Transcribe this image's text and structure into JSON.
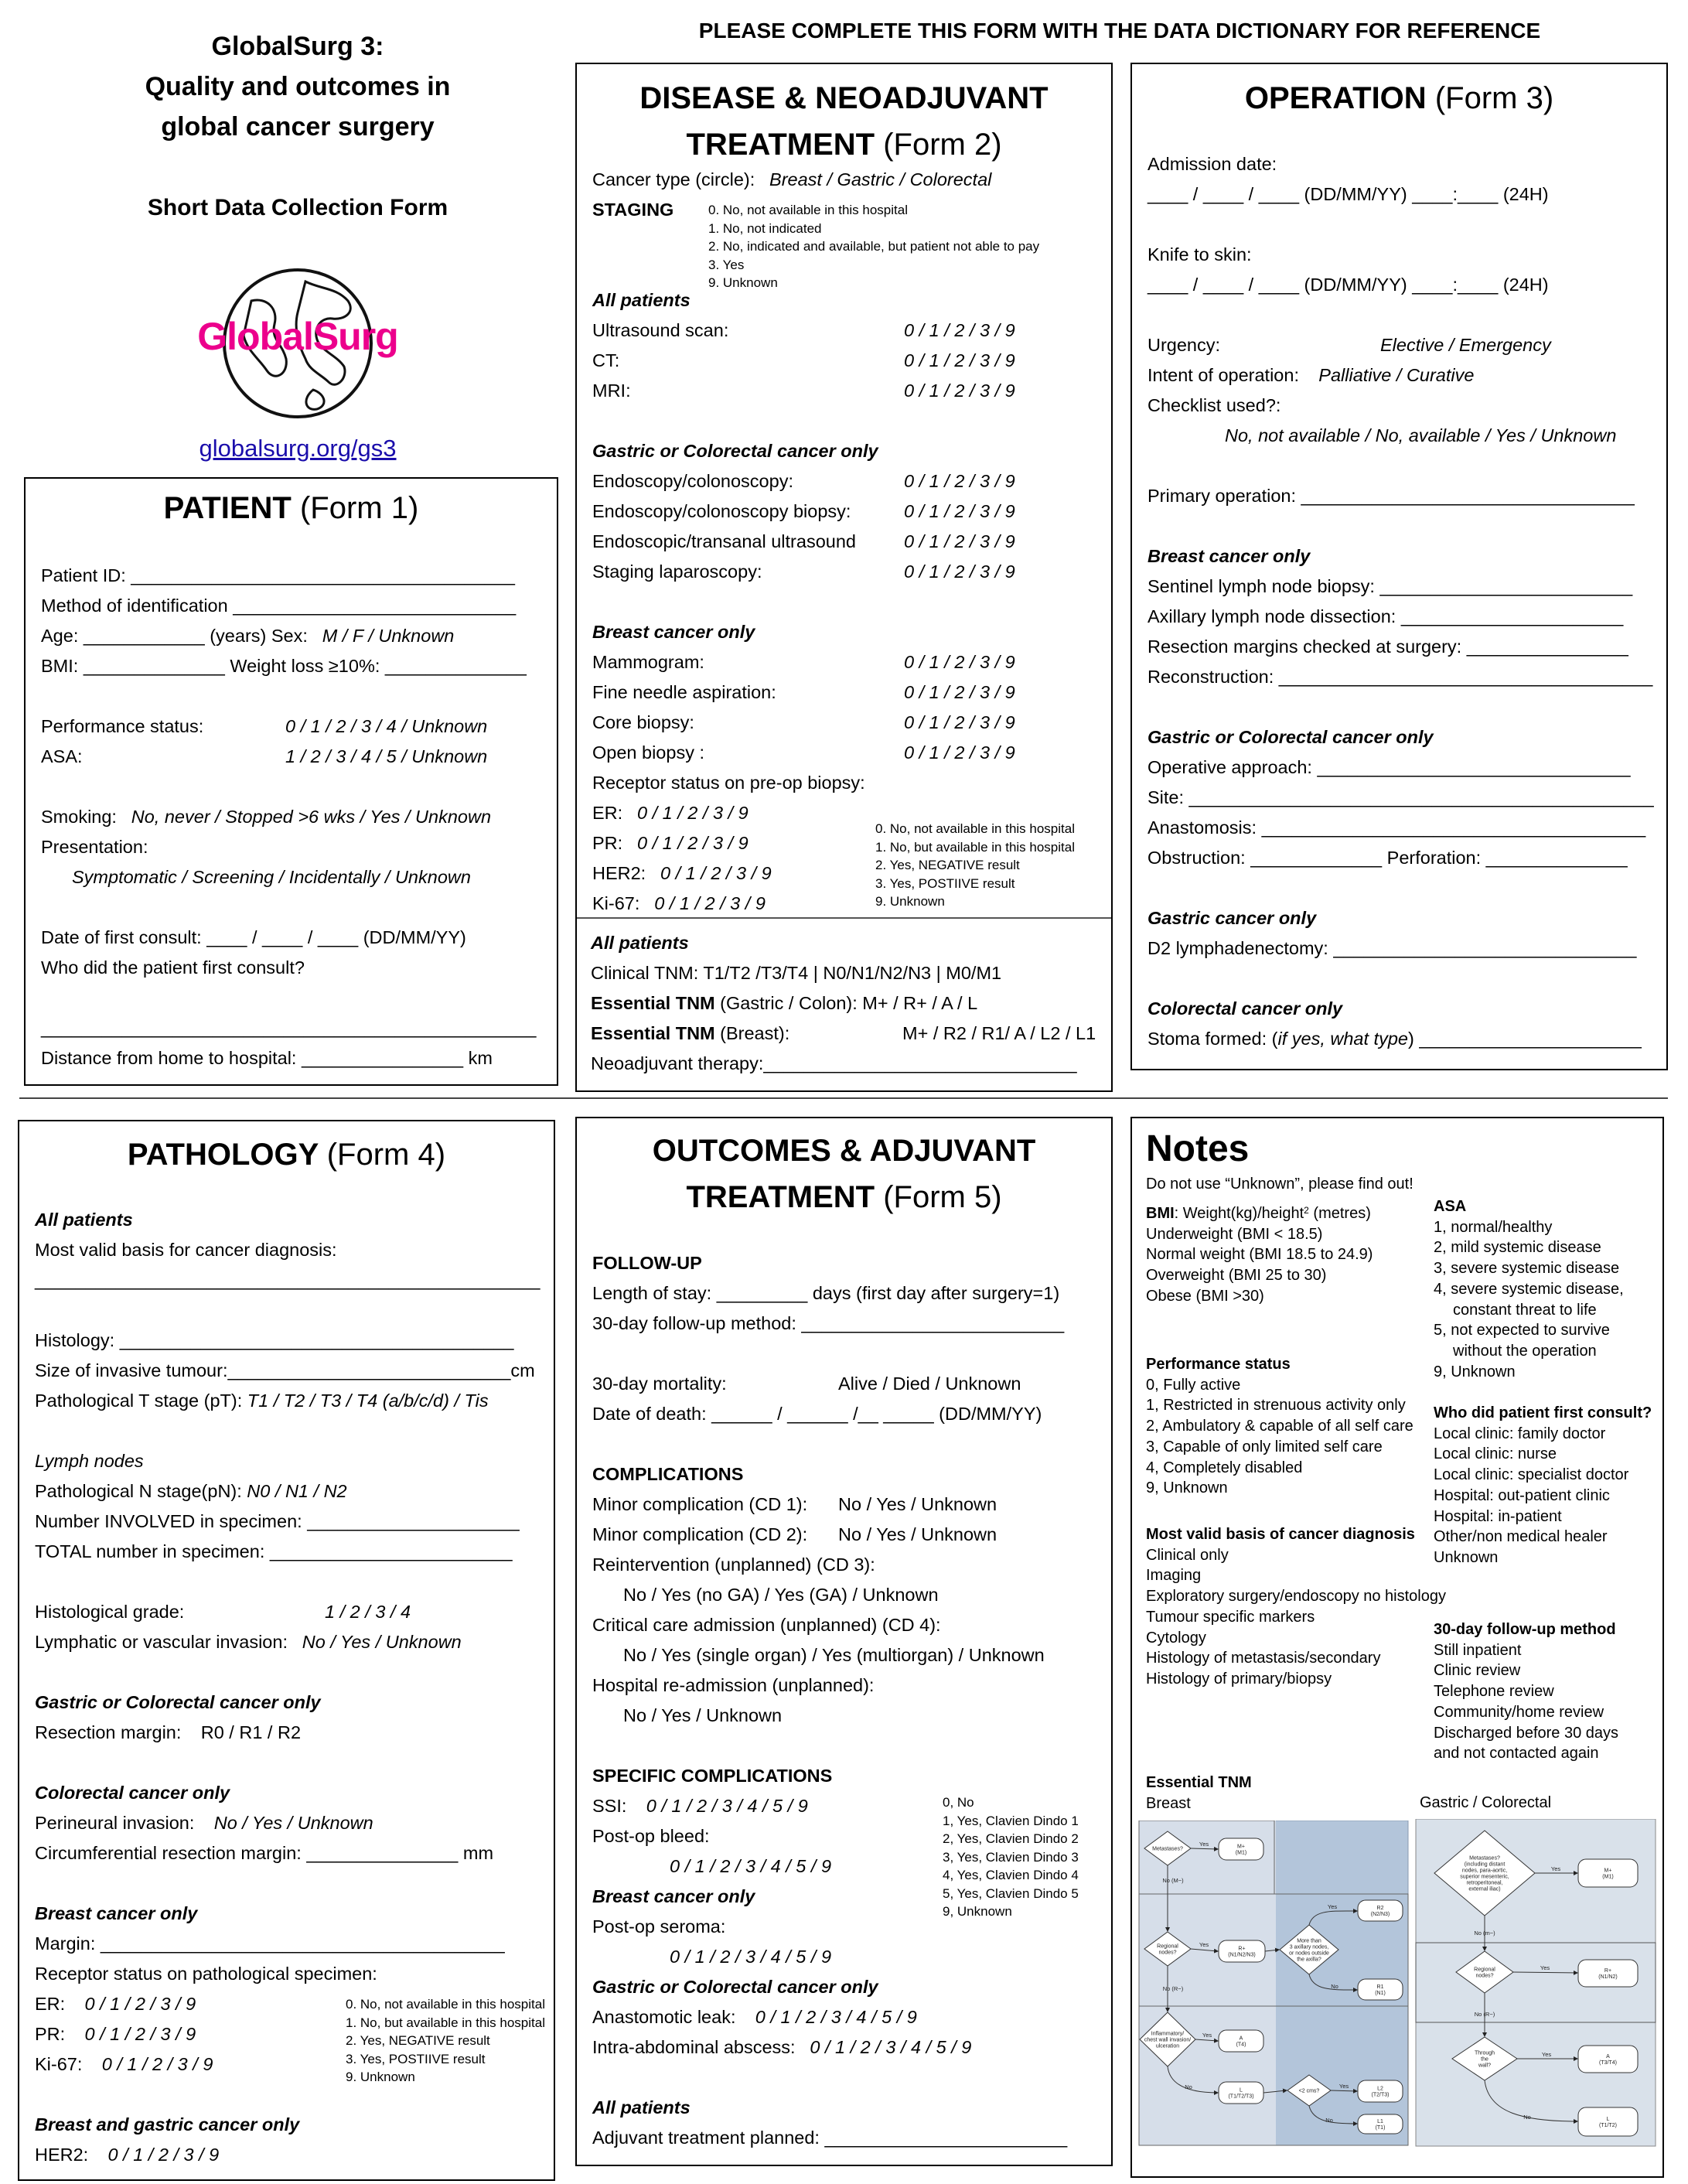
{
  "header": {
    "title_lines": [
      "GlobalSurg 3:",
      "Quality and outcomes in",
      "global cancer surgery"
    ],
    "subtitle": "Short Data Collection Form",
    "logo_text": "GlobalSurg",
    "link": "globalsurg.org/gs3",
    "banner": "PLEASE COMPLETE THIS FORM WITH THE DATA DICTIONARY FOR REFERENCE"
  },
  "colors": {
    "logo_pink": "#ec008c",
    "link_blue": "#1a0dab",
    "flow_light": "#d6dee9",
    "flow_dark": "#b3c5da"
  },
  "form1": {
    "title": [
      "PATIENT"
    ],
    "suffix": "(Form 1)",
    "lines": [
      "Patient ID: ______________________________________",
      "Method of identification ____________________________",
      {
        "l": "Age: ____________ (years)   Sex:",
        "i": "M / F / Unknown"
      },
      "BMI: ______________ Weight loss ≥10%: ______________",
      "",
      {
        "l": "Performance status:",
        "o": "0 / 1 / 2 / 3 / 4 / Unknown"
      },
      {
        "l": "ASA:",
        "o": "1 / 2 / 3 / 4 / 5 / Unknown"
      },
      "",
      {
        "l": "Smoking:",
        "i": "No, never / Stopped >6 wks / Yes / Unknown"
      },
      "Presentation:",
      {
        "sub": "Symptomatic / Screening / Incidentally / Unknown"
      },
      "",
      "Date of first consult: ____ / ____ / ____ (DD/MM/YY)",
      "Who did the patient first consult?",
      "",
      "_________________________________________________",
      "Distance from home to hospital: ________________ km"
    ]
  },
  "form2": {
    "title": [
      "DISEASE & NEOADJUVANT",
      "TREATMENT"
    ],
    "suffix": "(Form 2)",
    "lines": [
      {
        "l": "Cancer type (circle):",
        "i": "Breast  /  Gastric  /  Colorectal"
      },
      {
        "h": "STAGING",
        "legend": [
          "0. No, not available in this hospital",
          "1. No, not indicated",
          "2. No, indicated and available, but patient not able to pay",
          "3. Yes",
          "9. Unknown"
        ]
      },
      "",
      "",
      {
        "s": "All patients"
      },
      {
        "l": "Ultrasound scan:",
        "o": "0  /  1  /  2  /  3  /  9"
      },
      {
        "l": "CT:",
        "o": "0  /  1  /  2  /  3  /  9"
      },
      {
        "l": "MRI:",
        "o": "0  /  1  /  2  /  3  /  9"
      },
      "",
      {
        "s": "Gastric or Colorectal cancer only"
      },
      {
        "l": "Endoscopy/colonoscopy:",
        "o": "0  /  1  /  2  /  3  /  9"
      },
      {
        "l": "Endoscopy/colonoscopy biopsy:",
        "o": "0  /  1  /  2  /  3  /  9"
      },
      {
        "l": "Endoscopic/transanal ultrasound",
        "o": "0  /  1  /  2  /  3  /  9"
      },
      {
        "l": "Staging laparoscopy:",
        "o": "0  /  1  /  2  /  3  /  9"
      },
      "",
      {
        "s": "Breast cancer only"
      },
      {
        "l": "Mammogram:",
        "o": "0  /  1  /  2  /  3  /  9"
      },
      {
        "l": "Fine needle aspiration:",
        "o": "0  /  1  /  2  /  3  /  9"
      },
      {
        "l": "Core biopsy:",
        "o": "0  /  1  /  2  /  3  /  9"
      },
      {
        "l": "Open biopsy :",
        "o": "0  /  1  /  2  /  3  /  9"
      },
      "Receptor status on pre-op biopsy:",
      {
        "l": "ER:",
        "i": "0  /  1  /  2  /  3  /  9",
        "legend": [
          "0. No, not available in this hospital",
          "1. No, but available in this hospital",
          "2. Yes, NEGATIVE result",
          "3. Yes, POSTIIVE result",
          "9. Unknown"
        ]
      },
      {
        "l": "PR:",
        "i": "0  /  1  /  2  /  3  /  9"
      },
      {
        "l": "HER2:",
        "i": "0  /  1  /  2  /  3  /  9"
      },
      {
        "l": "Ki-67:",
        "i": "0  /  1  /  2  /  3  /  9"
      }
    ],
    "lines_bottom": [
      {
        "s": "All patients"
      },
      "Clinical TNM:   T1/T2 /T3/T4  |  N0/N1/N2/N3  |  M0/M1",
      {
        "b": "Essential TNM",
        "l": " (Gastric / Colon):  M+ / R+ / A / L"
      },
      {
        "b": "Essential TNM",
        "l": " (Breast):",
        "on": "M+ / R2 / R1/ A / L2 / L1"
      },
      "Neoadjuvant therapy:_______________________________"
    ]
  },
  "form3": {
    "title": [
      "OPERATION"
    ],
    "suffix": "(Form 3)",
    "lines": [
      "Admission date:",
      "____ / ____ / ____ (DD/MM/YY) ____:____ (24H)",
      "",
      "Knife to skin:",
      "____ / ____ / ____ (DD/MM/YY) ____:____ (24H)",
      "",
      {
        "l": "Urgency:",
        "o": "Elective    /    Emergency"
      },
      {
        "l": "Intent of operation:",
        "i": "   Palliative  /   Curative"
      },
      "Checklist used?:",
      {
        "deep": "No, not available / No, available / Yes / Unknown"
      },
      "",
      "Primary operation: _________________________________",
      "",
      {
        "s": "Breast cancer only"
      },
      "Sentinel lymph node biopsy: _________________________",
      "Axillary lymph node dissection: ______________________",
      "Resection margins checked at surgery: ________________",
      "Reconstruction: _____________________________________",
      "",
      {
        "s": "Gastric or Colorectal cancer only"
      },
      "Operative approach: _______________________________",
      "Site: ______________________________________________",
      "Anastomosis: ______________________________________",
      "Obstruction: _____________  Perforation: ______________",
      "",
      {
        "s": "Gastric cancer only"
      },
      "D2 lymphadenectomy: ______________________________",
      "",
      {
        "s": "Colorectal cancer only"
      },
      {
        "l": "Stoma formed: (",
        "it": "if yes, what type",
        "l2": ") ______________________"
      }
    ]
  },
  "form4": {
    "title": [
      "PATHOLOGY"
    ],
    "suffix": "(Form 4)",
    "lines": [
      {
        "s": "All patients"
      },
      "Most valid basis for cancer diagnosis:",
      "__________________________________________________",
      "",
      "Histology: _______________________________________",
      "Size of invasive tumour:____________________________cm",
      {
        "l": "Pathological T stage (pT):",
        "it": " T1 / T2 / T3 / T4 (a/b/c/d) / Tis"
      },
      "",
      {
        "si": "Lymph nodes"
      },
      {
        "l": "Pathological N stage(pN):",
        "it": " N0 / N1 / N2"
      },
      "Number INVOLVED in specimen: _____________________",
      "TOTAL number in specimen: ________________________",
      "",
      {
        "l": "Histological grade:",
        "o": "1   /   2   /   3   /   4"
      },
      {
        "l": "Lymphatic or vascular invasion:",
        "i": "No   /   Yes   /   Unknown"
      },
      "",
      {
        "s": "Gastric or Colorectal cancer only"
      },
      {
        "l": "Resection margin:",
        "n": "          R0  /  R1  /  R2"
      },
      "",
      {
        "s": "Colorectal cancer only"
      },
      {
        "l": "Perineural invasion:",
        "i": "        No   /   Yes   /   Unknown"
      },
      "Circumferential resection margin: _______________ mm",
      "",
      {
        "s": "Breast cancer only"
      },
      "Margin: ________________________________________",
      "Receptor status on pathological specimen:",
      {
        "l": "ER:",
        "i": "    0  /  1  /  2  /  3  /  9",
        "legend": [
          "0. No, not available in this hospital",
          "1. No, but available in this hospital",
          "2. Yes, NEGATIVE result",
          "3. Yes, POSTIIVE result",
          "9. Unknown"
        ]
      },
      {
        "l": "PR:",
        "i": "    0  /  1  /  2  /  3  /  9"
      },
      {
        "l": "Ki-67:",
        "i": " 0  /  1  /  2  /  3  /  9"
      },
      "",
      {
        "s": "Breast and gastric cancer only"
      },
      {
        "l": "HER2:",
        "i": " 0  /  1  /  2  /  3  /  9"
      }
    ]
  },
  "form5": {
    "title": [
      "OUTCOMES & ADJUVANT",
      "TREATMENT"
    ],
    "suffix": "(Form 5)",
    "lines": [
      {
        "h": "FOLLOW-UP"
      },
      "Length of stay: _________ days (first day after surgery=1)",
      "30-day follow-up method: __________________________",
      "",
      {
        "l": "30-day mortality:",
        "on": "Alive  /  Died  /  Unknown"
      },
      "Date of death: ______ / ______ /__ _____ (DD/MM/YY)",
      "",
      {
        "h": "COMPLICATIONS"
      },
      {
        "l": "Minor complication (CD 1):",
        "on": "No  /  Yes  /  Unknown"
      },
      {
        "l": "Minor complication (CD 2):",
        "on": "No  /  Yes  /  Unknown"
      },
      "Reintervention (unplanned) (CD 3):",
      {
        "subn": "No / Yes (no GA)  /  Yes (GA)  /  Unknown"
      },
      "Critical care admission (unplanned) (CD 4):",
      {
        "subn": "No / Yes (single organ) / Yes (multiorgan) / Unknown"
      },
      "Hospital re-admission (unplanned):",
      {
        "subn": "No  /  Yes  /  Unknown"
      },
      "",
      {
        "h": "SPECIFIC COMPLICATIONS"
      },
      {
        "l": "SSI:",
        "i": "  0  /  1  /  2  /  3  /  4  /  5  /  9",
        "legend": [
          "0, No",
          "1, Yes, Clavien Dindo 1",
          "2, Yes, Clavien Dindo 2",
          "3, Yes, Clavien Dindo 3",
          "4, Yes, Clavien Dindo 4",
          "5, Yes, Clavien Dindo 5",
          "9, Unknown"
        ]
      },
      "Post-op bleed:",
      {
        "deep": "0  /  1  /  2  /  3  /  4  /  5  /  9"
      },
      {
        "s": "Breast cancer only"
      },
      "Post-op seroma:",
      {
        "deep": "0  /  1  /  2  /  3  /  4  /  5  /  9"
      },
      {
        "s": "Gastric or Colorectal cancer only"
      },
      {
        "l": "Anastomotic leak:",
        "i": "     0  /  1  /  2  /  3  /  4  /  5  /  9"
      },
      {
        "l": "Intra-abdominal abscess:",
        "i": "0  /  1  /  2  /  3  /  4  /  5  /  9"
      },
      "",
      {
        "s": "All patients"
      },
      "Adjuvant treatment planned: ________________________"
    ]
  },
  "notes": {
    "title": "Notes",
    "warning": "Do not use “Unknown”, please find out!",
    "bmi": {
      "label": "BMI",
      "formula": ": Weight(kg)/height",
      "sup": "2",
      "unit": " (metres)",
      "items": [
        "Underweight (BMI < 18.5)",
        "Normal weight (BMI 18.5 to 24.9)",
        "Overweight (BMI 25 to 30)",
        "Obese (BMI >30)"
      ]
    },
    "performance": {
      "title": "Performance status",
      "items": [
        "0, Fully active",
        "1, Restricted in strenuous activity only",
        "2, Ambulatory & capable of all self care",
        "3, Capable of only limited self care",
        "4, Completely disabled",
        "9, Unknown"
      ]
    },
    "basis": {
      "title": "Most valid basis of cancer diagnosis",
      "items": [
        "Clinical only",
        "Imaging",
        "Exploratory surgery/endoscopy no histology",
        "Tumour specific markers",
        "Cytology",
        "Histology of metastasis/secondary",
        "Histology of primary/biopsy"
      ]
    },
    "asa": {
      "title": "ASA",
      "items": [
        "1, normal/healthy",
        "2, mild systemic disease",
        "3, severe systemic disease",
        "4, severe systemic disease,",
        "constant threat to life",
        "5, not expected to survive",
        "without the operation",
        "9, Unknown"
      ]
    },
    "first_consult": {
      "title": "Who did patient first consult?",
      "items": [
        "Local clinic: family doctor",
        "Local clinic: nurse",
        "Local clinic: specialist doctor",
        "Hospital: out-patient clinic",
        "Hospital: in-patient",
        "Other/non medical healer",
        "Unknown"
      ]
    },
    "followup": {
      "title": "30-day follow-up method",
      "items": [
        "Still inpatient",
        "Clinic review",
        "Telephone review",
        "Community/home review",
        "Discharged before 30 days",
        "and not contacted again"
      ]
    },
    "essential_tnm": {
      "title": "Essential TNM",
      "breast": {
        "label": "Breast",
        "nodes": [
          [
            "Metastases?"
          ],
          [
            "M+",
            "(M1)"
          ],
          [
            "Regional",
            "nodes?"
          ],
          [
            "R+",
            "(N1/N2/N3)"
          ],
          [
            "More than",
            "3 axillary nodes,",
            "or nodes outside",
            "the axilla?"
          ],
          [
            "R2",
            "(N2/N3)"
          ],
          [
            "R1",
            "(N1)"
          ],
          [
            "Inflammatory/",
            "chest wall invasion/",
            "ulceration"
          ],
          [
            "A",
            "(T4)"
          ],
          [
            "L",
            "(T1/T2/T3)"
          ],
          [
            "<2 cms?"
          ],
          [
            "L2",
            "(T2/T3)"
          ],
          [
            "L1",
            "(T1)"
          ]
        ],
        "edges": [
          "Yes",
          "No (M−)",
          "Yes",
          "Yes",
          "No",
          "No (R−)",
          "Yes",
          "No",
          "Yes",
          "No"
        ]
      },
      "gastric": {
        "label": "Gastric / Colorectal",
        "nodes": [
          [
            "Metastases?",
            "(including distant",
            "nodes, para-aortic,",
            "superior mesenteric,",
            "retroperitoneal,",
            "external iliac)"
          ],
          [
            "M+",
            "(M1)"
          ],
          [
            "Regional",
            "nodes?"
          ],
          [
            "R+",
            "(N1/N2)"
          ],
          [
            "Through",
            "the",
            "wall?"
          ],
          [
            "A",
            "(T3/T4)"
          ],
          [
            "L",
            "(T1/T2)"
          ]
        ],
        "edges": [
          "Yes",
          "No (m−)",
          "Yes",
          "No (R−)",
          "Yes",
          "No"
        ]
      }
    }
  }
}
